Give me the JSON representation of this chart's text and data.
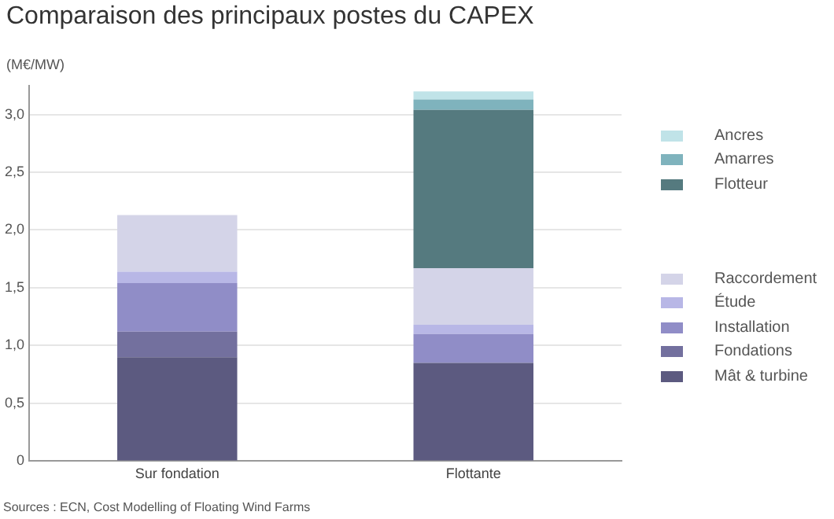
{
  "chart_data": {
    "type": "bar",
    "title": "Comparaison des principaux postes du CAPEX",
    "ylabel": "(M€/MW)",
    "categories": [
      "Sur fondation",
      "Flottante"
    ],
    "stacked": true,
    "series": [
      {
        "name": "Mât & turbine",
        "color": "#5c5a80",
        "values": [
          0.9,
          0.85
        ]
      },
      {
        "name": "Fondations",
        "color": "#73709e",
        "values": [
          0.22,
          0
        ]
      },
      {
        "name": "Installation",
        "color": "#908dc7",
        "values": [
          0.42,
          0.25
        ]
      },
      {
        "name": "Étude",
        "color": "#b8b7e6",
        "values": [
          0.1,
          0.08
        ]
      },
      {
        "name": "Raccordement",
        "color": "#d4d4e8",
        "values": [
          0.49,
          0.49
        ]
      },
      {
        "name": "Flotteur",
        "color": "#557a7f",
        "values": [
          0,
          1.37
        ]
      },
      {
        "name": "Amarres",
        "color": "#7fb3bd",
        "values": [
          0,
          0.09
        ]
      },
      {
        "name": "Ancres",
        "color": "#c0e3e8",
        "values": [
          0,
          0.07
        ]
      }
    ],
    "ylim": [
      0,
      3.25
    ],
    "yticks": [
      0,
      {
        "value": 0.5,
        "label": "0,5"
      },
      {
        "value": 1,
        "label": "1,0"
      },
      {
        "value": 1.5,
        "label": "1,5"
      },
      {
        "value": 2,
        "label": "2,0"
      },
      {
        "value": 2.5,
        "label": "2,5"
      },
      {
        "value": 3,
        "label": "3,0"
      }
    ],
    "grid": "y",
    "legend": "right",
    "annotations": [
      "Sources : ECN, Cost Modelling of Floating Wind Farms"
    ]
  }
}
